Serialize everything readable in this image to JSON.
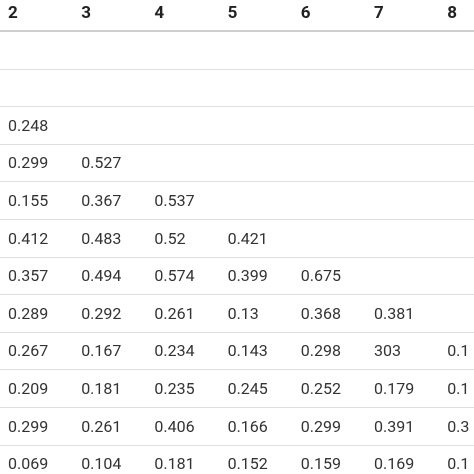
{
  "table": {
    "header": [
      "2",
      "3",
      "4",
      "5",
      "6",
      "7",
      "8"
    ],
    "rows": [
      [],
      [],
      [
        "0.248"
      ],
      [
        "0.299",
        "0.527"
      ],
      [
        "0.155",
        "0.367",
        "0.537"
      ],
      [
        "0.412",
        "0.483",
        "0.52",
        "0.421"
      ],
      [
        "0.357",
        "0.494",
        "0.574",
        "0.399",
        "0.675"
      ],
      [
        "0.289",
        "0.292",
        "0.261",
        "0.13",
        "0.368",
        "0.381"
      ],
      [
        "0.267",
        "0.167",
        "0.234",
        "0.143",
        "0.298",
        "303",
        "0.1"
      ],
      [
        "0.209",
        "0.181",
        "0.235",
        "0.245",
        "0.252",
        "0.179",
        "0.1"
      ],
      [
        "0.299",
        "0.261",
        "0.406",
        "0.166",
        "0.299",
        "0.391",
        "0.3"
      ],
      [
        "0.069",
        "0.104",
        "0.181",
        "0.152",
        "0.159",
        "0.169",
        "0.1"
      ]
    ]
  }
}
